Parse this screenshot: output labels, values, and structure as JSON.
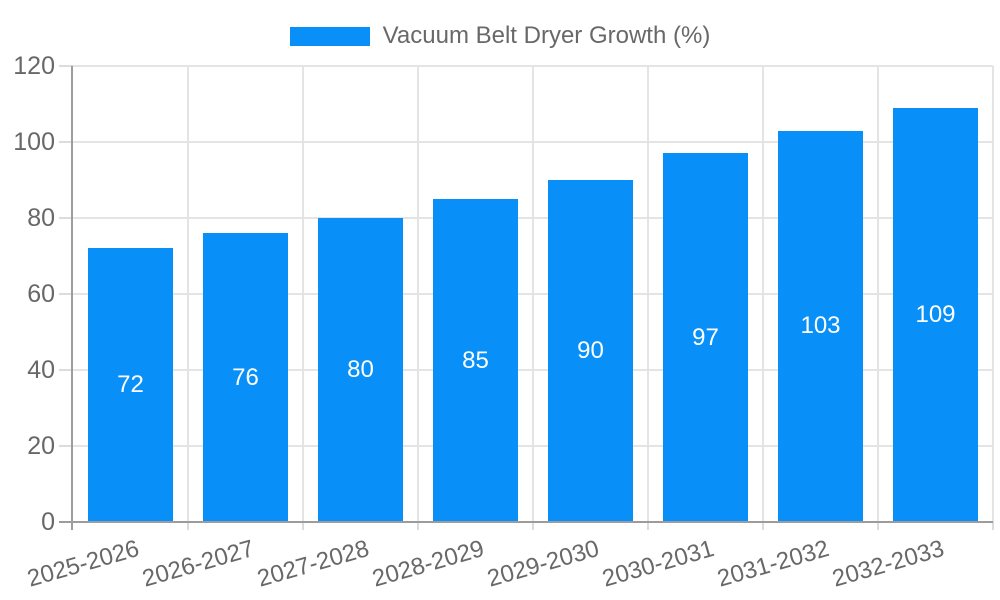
{
  "chart_data": {
    "type": "bar",
    "title": "",
    "categories": [
      "2025-2026",
      "2026-2027",
      "2027-2028",
      "2028-2029",
      "2029-2030",
      "2030-2031",
      "2031-2032",
      "2032-2033"
    ],
    "series": [
      {
        "name": "Vacuum Belt Dryer Growth (%)",
        "values": [
          72,
          76,
          80,
          85,
          90,
          97,
          103,
          109
        ],
        "color": "#0890f8"
      }
    ],
    "xlabel": "",
    "ylabel": "",
    "ylim": [
      0,
      120
    ],
    "yticks": [
      0,
      20,
      40,
      60,
      80,
      100,
      120
    ],
    "grid": true,
    "legend_position": "top-center",
    "value_labels": {
      "show": true,
      "color": "#ffffff",
      "position": "middle-of-bar"
    },
    "x_tick_rotation_deg": -16,
    "theme": {
      "background": "#ffffff",
      "bar_color": "#0890f8",
      "axis_color": "#9c9c9c",
      "grid_color": "#e4e4e4",
      "tick_mark_color": "#dcdcdc",
      "tick_text_color": "#686868",
      "legend_text_color": "#686868",
      "value_label_color": "#ffffff"
    }
  }
}
